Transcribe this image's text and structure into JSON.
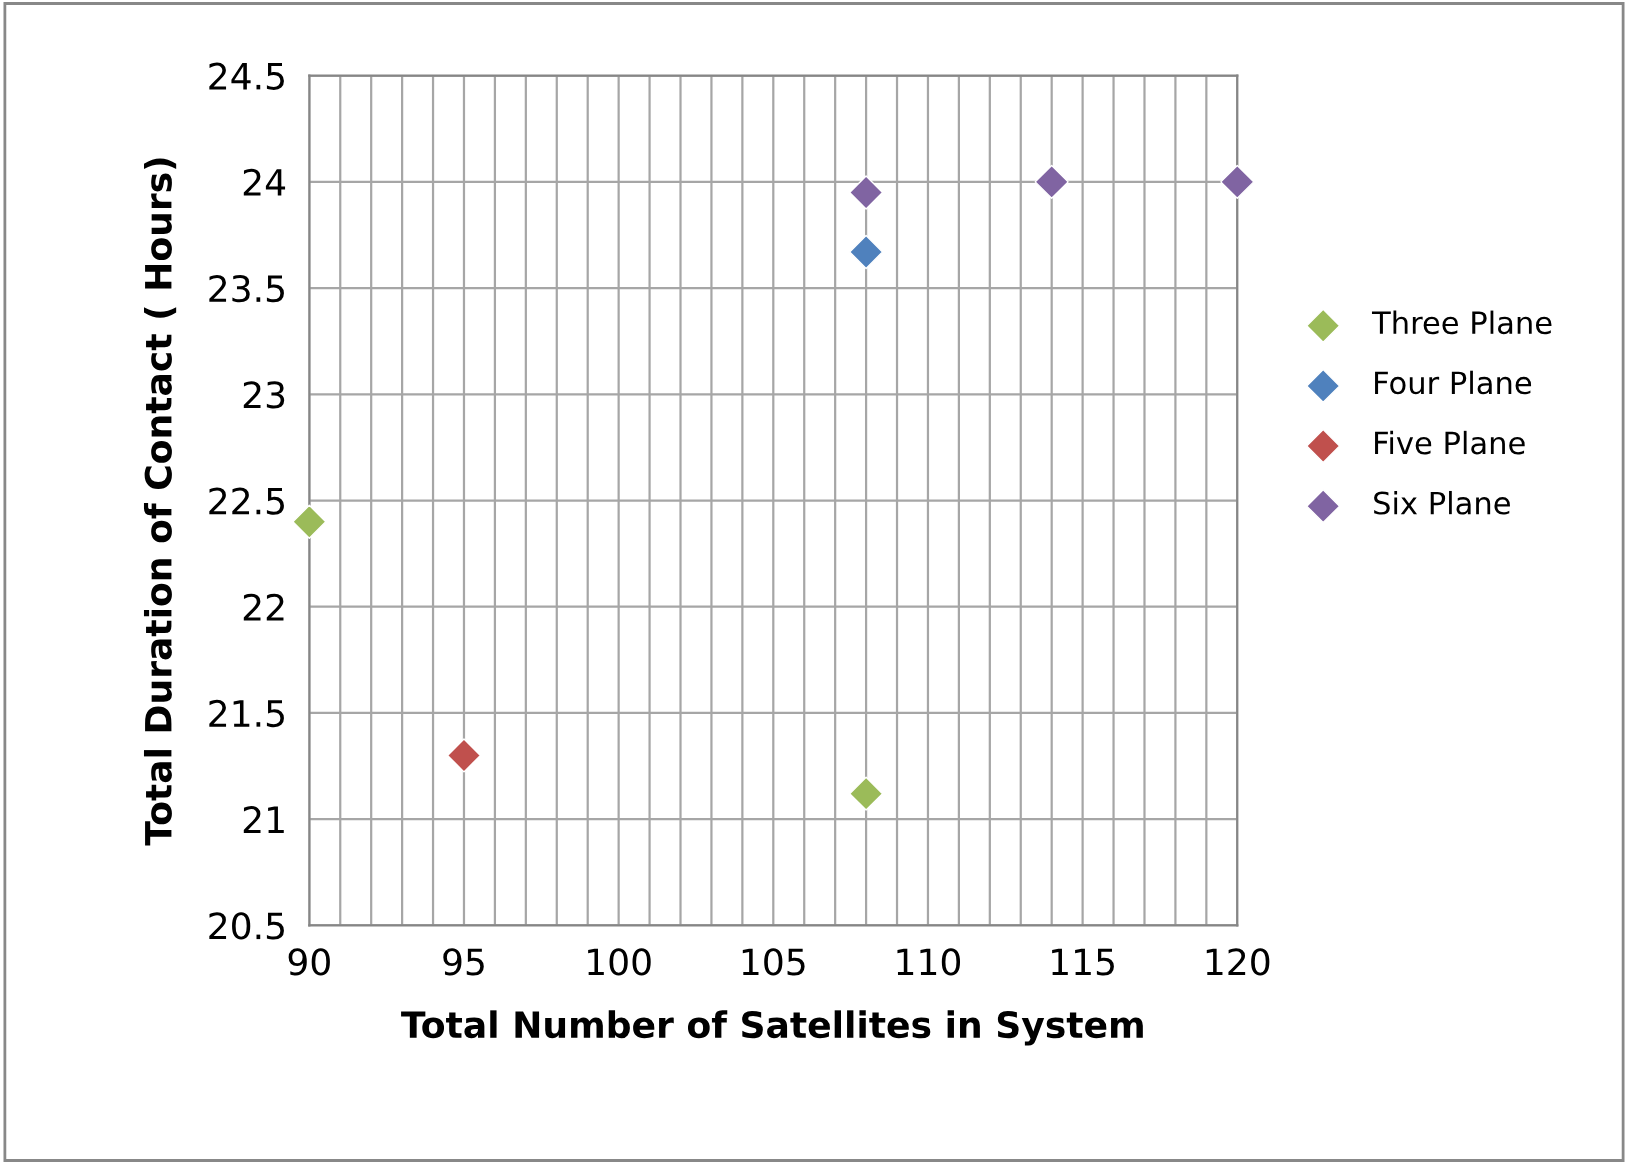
{
  "chart_data": {
    "type": "scatter",
    "xlabel": "Total Number of Satellites in System",
    "ylabel": "Total Duration of Contact ( Hours)",
    "series": [
      {
        "name": "Three Plane",
        "color": "#9bbb59",
        "x": [
          90,
          108
        ],
        "values": [
          22.4,
          21.12
        ]
      },
      {
        "name": "Four Plane",
        "color": "#4f81bd",
        "x": [
          108
        ],
        "values": [
          23.67
        ]
      },
      {
        "name": "Five Plane",
        "color": "#c0504d",
        "x": [
          95
        ],
        "values": [
          21.3
        ]
      },
      {
        "name": "Six Plane",
        "color": "#8064a2",
        "x": [
          108,
          114,
          120
        ],
        "values": [
          23.95,
          24.0,
          24.0
        ]
      }
    ],
    "xlim": [
      90,
      120
    ],
    "xticks": [
      90,
      {
        "value": 91,
        "label": null
      },
      {
        "value": 92,
        "label": null
      },
      {
        "value": 93,
        "label": null
      },
      {
        "value": 94,
        "label": null
      },
      95,
      {
        "value": 96,
        "label": null
      },
      {
        "value": 97,
        "label": null
      },
      {
        "value": 98,
        "label": null
      },
      {
        "value": 99,
        "label": null
      },
      100,
      {
        "value": 101,
        "label": null
      },
      {
        "value": 102,
        "label": null
      },
      {
        "value": 103,
        "label": null
      },
      {
        "value": 104,
        "label": null
      },
      105,
      {
        "value": 106,
        "label": null
      },
      {
        "value": 107,
        "label": null
      },
      {
        "value": 108,
        "label": null
      },
      {
        "value": 109,
        "label": null
      },
      110,
      {
        "value": 111,
        "label": null
      },
      {
        "value": 112,
        "label": null
      },
      {
        "value": 113,
        "label": null
      },
      {
        "value": 114,
        "label": null
      },
      115,
      {
        "value": 116,
        "label": null
      },
      {
        "value": 117,
        "label": null
      },
      {
        "value": 118,
        "label": null
      },
      {
        "value": 119,
        "label": null
      },
      120
    ],
    "ylim": [
      20.5,
      24.5
    ],
    "yticks": [
      20.5,
      21,
      21.5,
      22,
      22.5,
      23,
      23.5,
      24,
      24.5
    ],
    "grid": true,
    "legend": "right",
    "marker": "diamond"
  }
}
